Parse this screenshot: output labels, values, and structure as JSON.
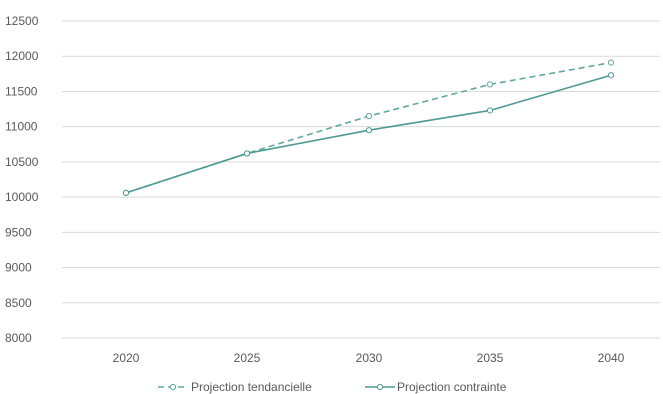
{
  "chart_data": {
    "type": "line",
    "title": "",
    "xlabel": "",
    "ylabel": "",
    "x": [
      "2020",
      "2025",
      "2030",
      "2035",
      "2040"
    ],
    "ylim": [
      8000,
      12500
    ],
    "ytick_step": 500,
    "y_ticks": [
      "8000",
      "8500",
      "9000",
      "9500",
      "10000",
      "10500",
      "11000",
      "11500",
      "12000",
      "12500"
    ],
    "grid": true,
    "legend_position": "bottom",
    "series": [
      {
        "name": "Projection tendancielle",
        "values": [
          10060,
          10620,
          11150,
          11600,
          11910
        ],
        "color": "#5fa8a0",
        "style": "dashed",
        "marker": "circle-open"
      },
      {
        "name": "Projection contrainte",
        "values": [
          10060,
          10620,
          10950,
          11230,
          11730
        ],
        "color": "#4e9a92",
        "style": "solid",
        "marker": "circle-open"
      }
    ]
  },
  "colors": {
    "grid": "#d9d9d9",
    "text": "#595959"
  }
}
